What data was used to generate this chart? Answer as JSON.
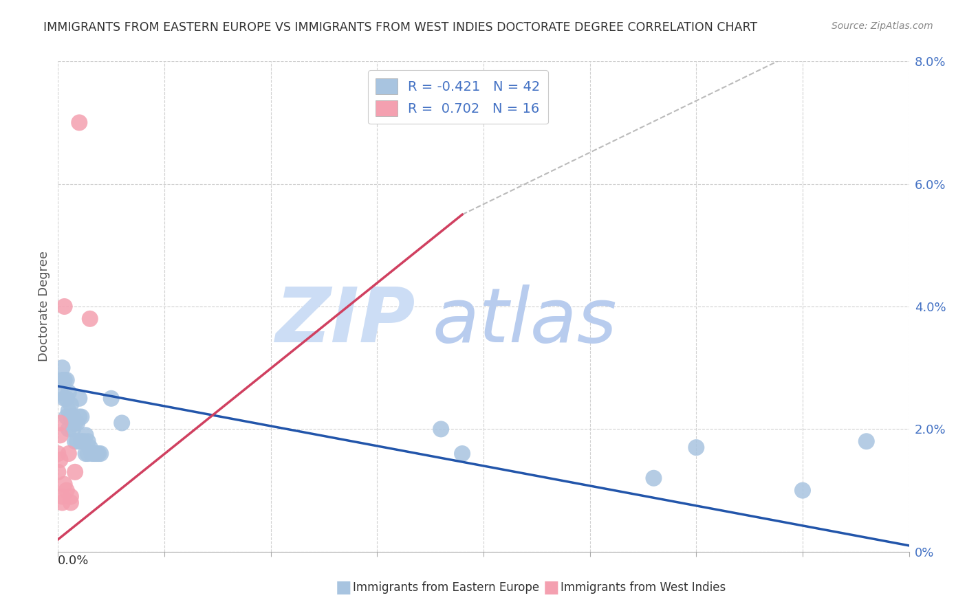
{
  "title": "IMMIGRANTS FROM EASTERN EUROPE VS IMMIGRANTS FROM WEST INDIES DOCTORATE DEGREE CORRELATION CHART",
  "source": "Source: ZipAtlas.com",
  "ylabel": "Doctorate Degree",
  "xlim": [
    0.0,
    0.4
  ],
  "ylim": [
    0.0,
    0.08
  ],
  "right_ytick_vals": [
    0.0,
    0.02,
    0.04,
    0.06,
    0.08
  ],
  "right_ytick_labels": [
    "0%",
    "2.0%",
    "4.0%",
    "6.0%",
    "8.0%"
  ],
  "blue_color": "#a8c4e0",
  "pink_color": "#f4a0b0",
  "blue_line_color": "#2255aa",
  "pink_line_color": "#d04060",
  "watermark_zip_color": "#ccddf5",
  "watermark_atlas_color": "#b8ccee",
  "blue_scatter_x": [
    0.001,
    0.002,
    0.002,
    0.003,
    0.003,
    0.004,
    0.004,
    0.004,
    0.005,
    0.005,
    0.005,
    0.006,
    0.006,
    0.007,
    0.007,
    0.008,
    0.008,
    0.009,
    0.009,
    0.01,
    0.01,
    0.011,
    0.011,
    0.012,
    0.013,
    0.013,
    0.014,
    0.014,
    0.015,
    0.016,
    0.017,
    0.018,
    0.019,
    0.02,
    0.025,
    0.03,
    0.18,
    0.19,
    0.28,
    0.3,
    0.35,
    0.38
  ],
  "blue_scatter_y": [
    0.026,
    0.028,
    0.03,
    0.025,
    0.028,
    0.022,
    0.025,
    0.028,
    0.02,
    0.023,
    0.026,
    0.022,
    0.024,
    0.02,
    0.022,
    0.018,
    0.021,
    0.018,
    0.021,
    0.022,
    0.025,
    0.018,
    0.022,
    0.018,
    0.016,
    0.019,
    0.016,
    0.018,
    0.017,
    0.016,
    0.016,
    0.016,
    0.016,
    0.016,
    0.025,
    0.021,
    0.02,
    0.016,
    0.012,
    0.017,
    0.01,
    0.018
  ],
  "pink_scatter_x": [
    0.0,
    0.0,
    0.001,
    0.001,
    0.001,
    0.002,
    0.002,
    0.003,
    0.003,
    0.004,
    0.005,
    0.006,
    0.006,
    0.008,
    0.01,
    0.015
  ],
  "pink_scatter_y": [
    0.016,
    0.013,
    0.015,
    0.019,
    0.021,
    0.008,
    0.009,
    0.011,
    0.04,
    0.01,
    0.016,
    0.008,
    0.009,
    0.013,
    0.07,
    0.038
  ],
  "blue_R": "-0.421",
  "blue_N": "42",
  "pink_R": "0.702",
  "pink_N": "16",
  "blue_trend": [
    0.0,
    0.4,
    0.027,
    0.001
  ],
  "pink_trend_solid": [
    0.0,
    0.19,
    0.002,
    0.055
  ],
  "pink_trend_dash": [
    0.19,
    0.35,
    0.055,
    0.082
  ]
}
